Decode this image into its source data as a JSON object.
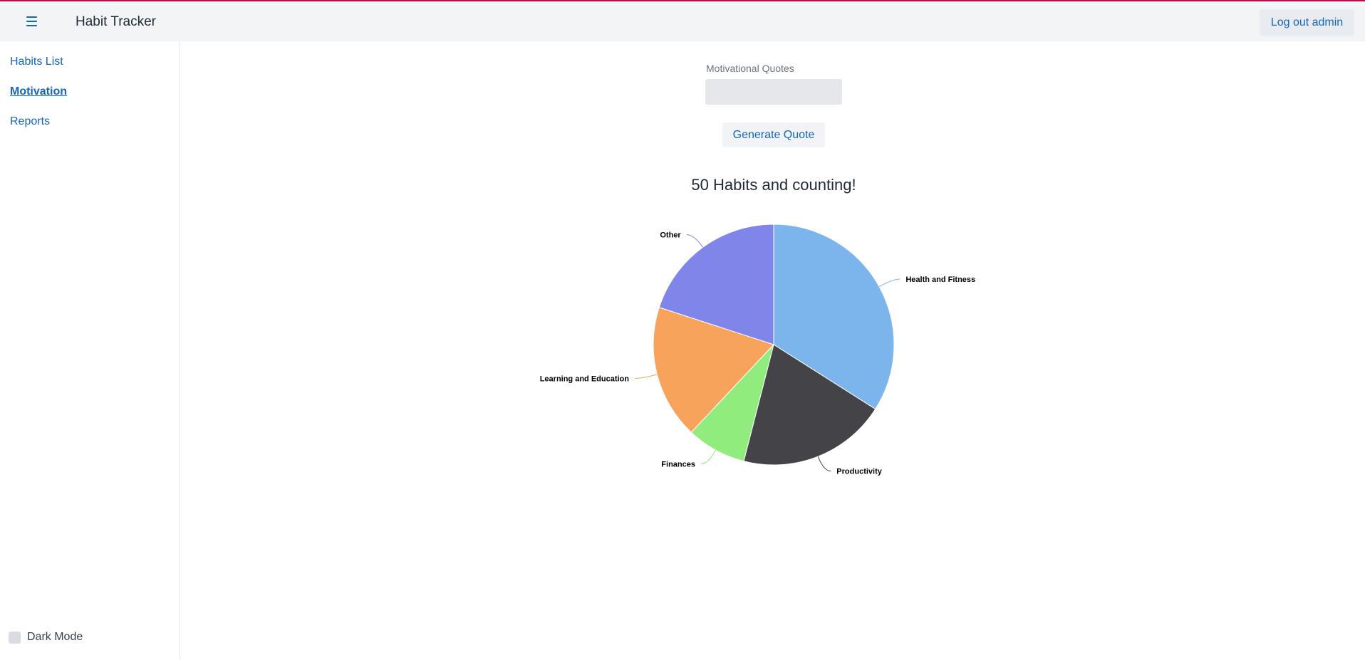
{
  "header": {
    "title": "Habit Tracker",
    "logout_label": "Log out admin",
    "menu_icon": "hamburger-menu-icon"
  },
  "sidebar": {
    "items": [
      {
        "label": "Habits List",
        "active": false
      },
      {
        "label": "Motivation",
        "active": true
      },
      {
        "label": "Reports",
        "active": false
      }
    ],
    "dark_mode_label": "Dark Mode",
    "dark_mode_checked": false
  },
  "main": {
    "quotes_label": "Motivational Quotes",
    "quotes_value": "",
    "generate_label": "Generate Quote"
  },
  "chart_data": {
    "type": "pie",
    "title": "50 Habits and counting!",
    "series": [
      {
        "name": "Health and Fitness",
        "value": 17,
        "color": "#7cb5ec"
      },
      {
        "name": "Productivity",
        "value": 10,
        "color": "#434348"
      },
      {
        "name": "Finances",
        "value": 4,
        "color": "#90ed7d"
      },
      {
        "name": "Learning and Education",
        "value": 9,
        "color": "#f7a35c"
      },
      {
        "name": "Other",
        "value": 10,
        "color": "#8085e9"
      }
    ]
  }
}
